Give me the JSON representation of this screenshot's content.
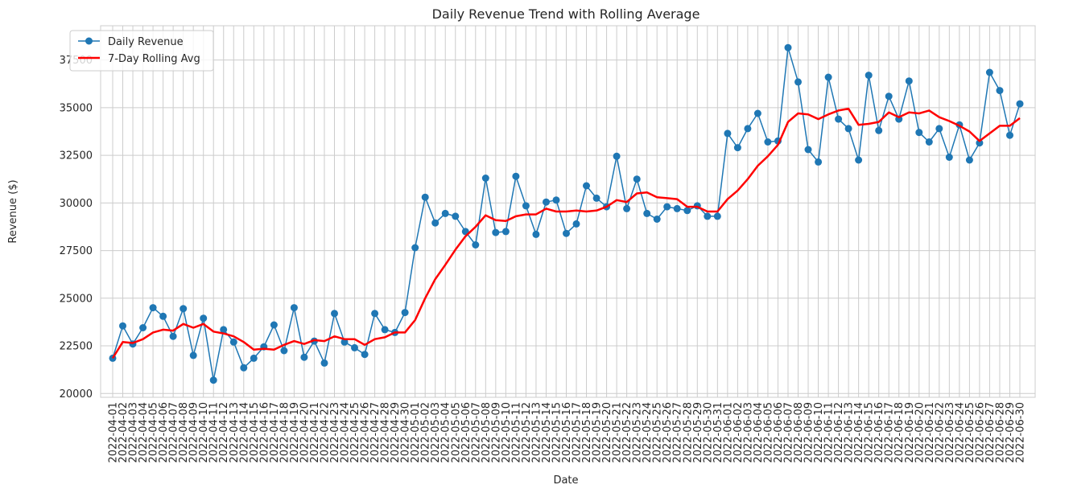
{
  "chart_data": {
    "type": "line",
    "title": "Daily Revenue Trend with Rolling Average",
    "xlabel": "Date",
    "ylabel": "Revenue ($)",
    "x_start": "2022-04-01",
    "x_end": "2022-06-30",
    "ylim": [
      19800,
      39300
    ],
    "yticks": [
      20000,
      22500,
      25000,
      27500,
      30000,
      32500,
      35000,
      37500
    ],
    "grid": true,
    "legend_position": "upper-left",
    "series": [
      {
        "name": "Daily Revenue",
        "color": "#1f77b4",
        "marker": "circle",
        "values": [
          21850,
          23550,
          22600,
          23450,
          24500,
          24050,
          23000,
          24450,
          22000,
          23950,
          20700,
          23350,
          22700,
          21350,
          21850,
          22450,
          23600,
          22250,
          24500,
          21900,
          22750,
          21600,
          24200,
          22700,
          22400,
          22050,
          24200,
          23350,
          23200,
          24250,
          27650,
          30300,
          28950,
          29450,
          29300,
          28500,
          27800,
          31300,
          28450,
          28500,
          31400,
          29850,
          28350,
          30050,
          30150,
          28400,
          28900,
          30900,
          30250,
          29800,
          32450,
          29700,
          31250,
          29450,
          29150,
          29800,
          29700,
          29600,
          29850,
          29300,
          29300,
          33650,
          32900,
          33900,
          34700,
          33200,
          33250,
          38150,
          36350,
          32800,
          32150,
          36600,
          34400,
          33900,
          32250,
          36700,
          33800,
          35600,
          34400,
          36400,
          33700,
          33200,
          33900,
          32400,
          34100,
          32250,
          33150,
          36850,
          35900,
          33550,
          35200
        ]
      },
      {
        "name": "7-Day Rolling Avg",
        "color": "#ff0000",
        "values": [
          21850,
          22700,
          22650,
          22850,
          23200,
          23350,
          23300,
          23650,
          23450,
          23650,
          23250,
          23150,
          23000,
          22700,
          22300,
          22350,
          22300,
          22550,
          22750,
          22600,
          22800,
          22750,
          23000,
          22850,
          22850,
          22550,
          22850,
          22950,
          23200,
          23200,
          23850,
          25000,
          26000,
          26750,
          27550,
          28250,
          28750,
          29350,
          29100,
          29050,
          29300,
          29400,
          29400,
          29700,
          29550,
          29550,
          29600,
          29550,
          29600,
          29800,
          30150,
          30050,
          30500,
          30550,
          30300,
          30250,
          30200,
          29800,
          29800,
          29550,
          29550,
          30200,
          30650,
          31250,
          31950,
          32450,
          33050,
          34250,
          34700,
          34650,
          34400,
          34650,
          34850,
          34950,
          34100,
          34150,
          34250,
          34750,
          34500,
          34750,
          34700,
          34850,
          34500,
          34300,
          34050,
          33750,
          33250,
          33650,
          34050,
          34050,
          34450
        ]
      }
    ]
  }
}
